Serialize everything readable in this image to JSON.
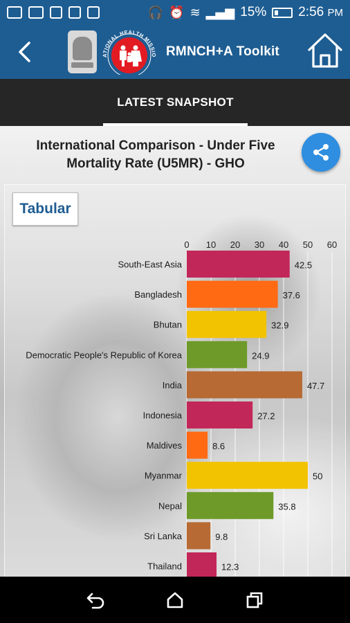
{
  "status_bar": {
    "battery": "15%",
    "time": "2:56",
    "ampm": "PM"
  },
  "header": {
    "title": "RMNCH+A Toolkit",
    "logo_text": "NATIONAL HEALTH MISSION"
  },
  "tabs": [
    {
      "label": "LATEST SNAPSHOT",
      "active": true
    }
  ],
  "chart_data": {
    "type": "bar",
    "orientation": "horizontal",
    "title": "International Comparison - Under Five Mortality Rate (U5MR) - GHO",
    "categories": [
      "South-East Asia",
      "Bangladesh",
      "Bhutan",
      "Democratic People's Republic of Korea",
      "India",
      "Indonesia",
      "Maldives",
      "Myanmar",
      "Nepal",
      "Sri Lanka",
      "Thailand"
    ],
    "values": [
      42.5,
      37.6,
      32.9,
      24.9,
      47.7,
      27.2,
      8.6,
      50,
      35.8,
      9.8,
      12.3
    ],
    "value_labels": [
      "42.5",
      "37.6",
      "32.9",
      "24.9",
      "47.7",
      "27.2",
      "8.6",
      "50",
      "35.8",
      "9.8",
      "12.3"
    ],
    "colors": [
      "#c2275a",
      "#ff6a13",
      "#f2c300",
      "#6e9a2a",
      "#b76a33",
      "#c2275a",
      "#ff6a13",
      "#f2c300",
      "#6e9a2a",
      "#b76a33",
      "#c2275a"
    ],
    "xlim": [
      0,
      60
    ],
    "ticks": [
      "0",
      "10",
      "20",
      "30",
      "40",
      "50",
      "60"
    ],
    "tick_values": [
      0,
      10,
      20,
      30,
      40,
      50,
      60
    ],
    "grid": true,
    "axis_position": "top"
  },
  "actions": {
    "tabular_label": "Tabular"
  },
  "icons": {
    "back": "back-arrow-icon",
    "home": "home-icon",
    "share": "share-icon"
  }
}
